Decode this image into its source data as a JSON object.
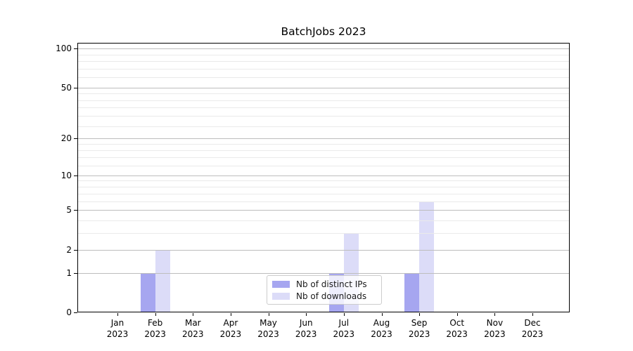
{
  "chart_data": {
    "type": "bar",
    "title": "BatchJobs 2023",
    "categories": [
      "Jan 2023",
      "Feb 2023",
      "Mar 2023",
      "Apr 2023",
      "May 2023",
      "Jun 2023",
      "Jul 2023",
      "Aug 2023",
      "Sep 2023",
      "Oct 2023",
      "Nov 2023",
      "Dec 2023"
    ],
    "series": [
      {
        "name": "Nb of distinct IPs",
        "color": "#a6a6f0",
        "values": [
          0,
          1,
          0,
          0,
          0,
          0,
          1,
          0,
          1,
          0,
          0,
          0
        ]
      },
      {
        "name": "Nb of downloads",
        "color": "#dcdcf8",
        "values": [
          0,
          2,
          0,
          0,
          0,
          0,
          3,
          0,
          6,
          0,
          0,
          0
        ]
      }
    ],
    "xlabel": "",
    "ylabel": "",
    "yscale": "log10(1+x)",
    "ylim": [
      0,
      110
    ],
    "yticks": [
      0,
      1,
      2,
      5,
      10,
      20,
      50,
      100
    ],
    "yticks_minor": [
      3,
      4,
      6,
      7,
      8,
      9,
      12,
      14,
      16,
      18,
      25,
      30,
      35,
      40,
      45,
      60,
      70,
      80,
      90
    ],
    "grid": "horizontal",
    "legend": {
      "position": "lower center",
      "labels": [
        "Nb of distinct IPs",
        "Nb of downloads"
      ]
    },
    "colors": {
      "grid_major": "#bdbdbd",
      "grid_minor": "#eaeaea",
      "axis": "#000000",
      "background": "#ffffff",
      "text": "#000000"
    }
  }
}
